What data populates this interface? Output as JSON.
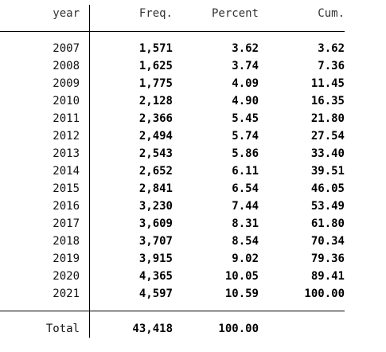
{
  "table": {
    "headers": {
      "year": "year",
      "freq": "Freq.",
      "percent": "Percent",
      "cum": "Cum."
    },
    "rows": [
      {
        "year": "2007",
        "freq": "1,571",
        "percent": "3.62",
        "cum": "3.62"
      },
      {
        "year": "2008",
        "freq": "1,625",
        "percent": "3.74",
        "cum": "7.36"
      },
      {
        "year": "2009",
        "freq": "1,775",
        "percent": "4.09",
        "cum": "11.45"
      },
      {
        "year": "2010",
        "freq": "2,128",
        "percent": "4.90",
        "cum": "16.35"
      },
      {
        "year": "2011",
        "freq": "2,366",
        "percent": "5.45",
        "cum": "21.80"
      },
      {
        "year": "2012",
        "freq": "2,494",
        "percent": "5.74",
        "cum": "27.54"
      },
      {
        "year": "2013",
        "freq": "2,543",
        "percent": "5.86",
        "cum": "33.40"
      },
      {
        "year": "2014",
        "freq": "2,652",
        "percent": "6.11",
        "cum": "39.51"
      },
      {
        "year": "2015",
        "freq": "2,841",
        "percent": "6.54",
        "cum": "46.05"
      },
      {
        "year": "2016",
        "freq": "3,230",
        "percent": "7.44",
        "cum": "53.49"
      },
      {
        "year": "2017",
        "freq": "3,609",
        "percent": "8.31",
        "cum": "61.80"
      },
      {
        "year": "2018",
        "freq": "3,707",
        "percent": "8.54",
        "cum": "70.34"
      },
      {
        "year": "2019",
        "freq": "3,915",
        "percent": "9.02",
        "cum": "79.36"
      },
      {
        "year": "2020",
        "freq": "4,365",
        "percent": "10.05",
        "cum": "89.41"
      },
      {
        "year": "2021",
        "freq": "4,597",
        "percent": "10.59",
        "cum": "100.00"
      }
    ],
    "total": {
      "label": "Total",
      "freq": "43,418",
      "percent": "100.00"
    }
  }
}
